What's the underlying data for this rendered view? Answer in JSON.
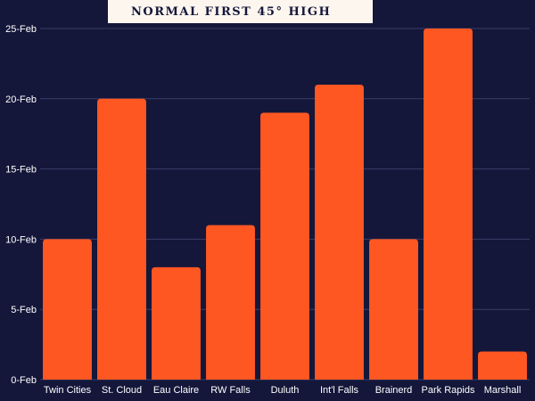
{
  "title": "NORMAL FIRST 45° HIGH",
  "colors": {
    "background": "#14173a",
    "bar": "#ff5722",
    "grid": "#3a3e66",
    "text": "#ffffff",
    "title_bg": "#fdf6ef"
  },
  "chart_data": {
    "type": "bar",
    "categories": [
      "Twin Cities",
      "St. Cloud",
      "Eau Claire",
      "RW Falls",
      "Duluth",
      "Int'l Falls",
      "Brainerd",
      "Park Rapids",
      "Marshall"
    ],
    "values": [
      10,
      20,
      8,
      11,
      19,
      21,
      10,
      25,
      2
    ],
    "ylim": [
      0,
      25
    ],
    "yticks": [
      0,
      5,
      10,
      15,
      20,
      25
    ],
    "ytick_labels": [
      "0-Feb",
      "5-Feb",
      "10-Feb",
      "15-Feb",
      "20-Feb",
      "25-Feb"
    ],
    "grid": true,
    "legend": "none"
  }
}
